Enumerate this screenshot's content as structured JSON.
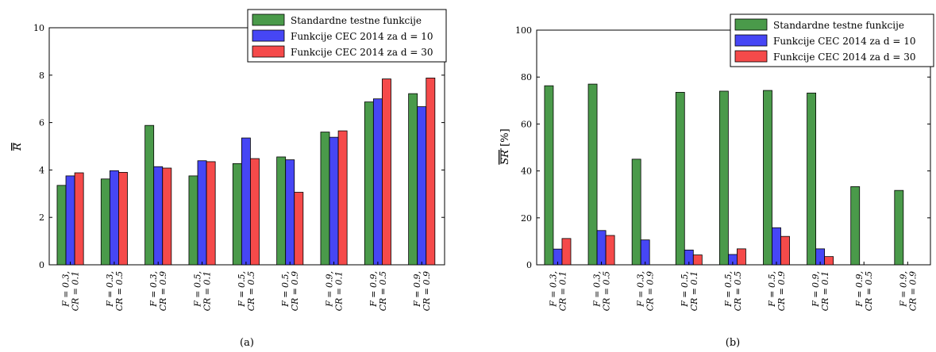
{
  "chart_data": [
    {
      "type": "bar",
      "caption": "(a)",
      "ylabel": "R",
      "ylim": [
        0,
        10
      ],
      "yticks": [
        0,
        2,
        4,
        6,
        8,
        10
      ],
      "categories": [
        [
          "F = 0.3,",
          "CR = 0.1"
        ],
        [
          "F = 0.3,",
          "CR = 0.5"
        ],
        [
          "F = 0.3,",
          "CR = 0.9"
        ],
        [
          "F = 0.5,",
          "CR = 0.1"
        ],
        [
          "F = 0.5,",
          "CR = 0.5"
        ],
        [
          "F = 0.5,",
          "CR = 0.9"
        ],
        [
          "F = 0.9,",
          "CR = 0.1"
        ],
        [
          "F = 0.9,",
          "CR = 0.5"
        ],
        [
          "F = 0.9,",
          "CR = 0.9"
        ]
      ],
      "series": [
        {
          "name": "Standardne testne funkcije",
          "color": "#4a9a4a",
          "values": [
            3.35,
            3.62,
            5.88,
            3.75,
            4.27,
            4.55,
            5.6,
            6.87,
            7.22
          ]
        },
        {
          "name": "Funkcije CEC 2014 za d = 10",
          "color": "#4646f5",
          "values": [
            3.75,
            3.97,
            4.14,
            4.39,
            5.35,
            4.43,
            5.38,
            7.0,
            6.67
          ]
        },
        {
          "name": "Funkcije CEC 2014 za d = 30",
          "color": "#f54a4a",
          "values": [
            3.88,
            3.9,
            4.08,
            4.35,
            4.48,
            3.06,
            5.65,
            7.84,
            7.88
          ]
        }
      ],
      "legend": "top-right",
      "grid": false
    },
    {
      "type": "bar",
      "caption": "(b)",
      "ylabel": "SR [%]",
      "ylim": [
        0,
        100
      ],
      "yticks": [
        0,
        20,
        40,
        60,
        80,
        100
      ],
      "categories": [
        [
          "F = 0.3,",
          "CR = 0.1"
        ],
        [
          "F = 0.3,",
          "CR = 0.5"
        ],
        [
          "F = 0.3,",
          "CR = 0.9"
        ],
        [
          "F = 0.5,",
          "CR = 0.1"
        ],
        [
          "F = 0.5,",
          "CR = 0.5"
        ],
        [
          "F = 0.5,",
          "CR = 0.9"
        ],
        [
          "F = 0.9,",
          "CR = 0.1"
        ],
        [
          "F = 0.9,",
          "CR = 0.5"
        ],
        [
          "F = 0.9,",
          "CR = 0.9"
        ]
      ],
      "series": [
        {
          "name": "Standardne testne funkcije",
          "color": "#4a9a4a",
          "values": [
            76.3,
            77.0,
            45.0,
            73.5,
            74.0,
            74.3,
            73.2,
            33.3,
            31.7
          ]
        },
        {
          "name": "Funkcije CEC 2014 za d = 10",
          "color": "#4646f5",
          "values": [
            6.7,
            14.6,
            10.6,
            6.3,
            4.4,
            15.8,
            6.8,
            0,
            0
          ]
        },
        {
          "name": "Funkcije CEC 2014 za d = 30",
          "color": "#f54a4a",
          "values": [
            11.2,
            12.5,
            0,
            4.2,
            6.8,
            12.1,
            3.5,
            0,
            0
          ]
        }
      ],
      "legend": "top-right",
      "grid": false
    }
  ]
}
